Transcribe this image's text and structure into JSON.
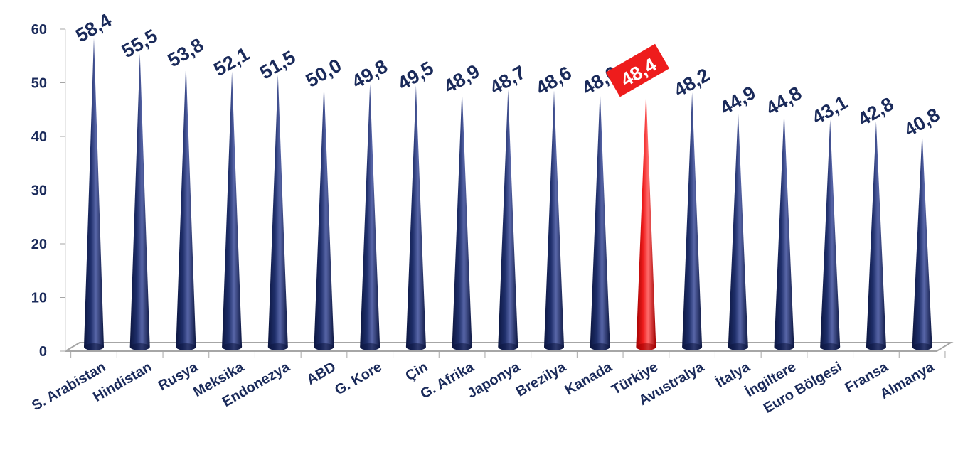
{
  "chart_data": {
    "type": "bar",
    "shape": "cone",
    "categories": [
      "S. Arabistan",
      "Hindistan",
      "Rusya",
      "Meksika",
      "Endonezya",
      "ABD",
      "G. Kore",
      "Çin",
      "G. Afrika",
      "Japonya",
      "Brezilya",
      "Kanada",
      "Türkiye",
      "Avustralya",
      "İtalya",
      "İngiltere",
      "Euro Bölgesi",
      "Fransa",
      "Almanya"
    ],
    "values": [
      58.4,
      55.5,
      53.8,
      52.1,
      51.5,
      50.0,
      49.8,
      49.5,
      48.9,
      48.7,
      48.6,
      48.6,
      48.4,
      48.2,
      44.9,
      44.8,
      43.1,
      42.8,
      40.8
    ],
    "value_labels": [
      "58,4",
      "55,5",
      "53,8",
      "52,1",
      "51,5",
      "50,0",
      "49,8",
      "49,5",
      "48,9",
      "48,7",
      "48,6",
      "48,6",
      "48,4",
      "48,2",
      "44,9",
      "44,8",
      "43,1",
      "42,8",
      "40,8"
    ],
    "highlight_category": "Türkiye",
    "ylim": [
      0,
      60
    ],
    "yticks": [
      "0",
      "10",
      "20",
      "30",
      "40",
      "50",
      "60"
    ],
    "title": "",
    "xlabel": "",
    "ylabel": "",
    "grid": false,
    "legend": "none",
    "colors": {
      "bar": "#1f2f6b",
      "bar_dark": "#0c1640",
      "bar_light": "#5866a8",
      "highlight": "#ee1c1c",
      "highlight_dark": "#a00000",
      "highlight_light": "#ff6b6b",
      "label_text": "#1a2a5a",
      "axis": "#a6a6a6"
    }
  }
}
